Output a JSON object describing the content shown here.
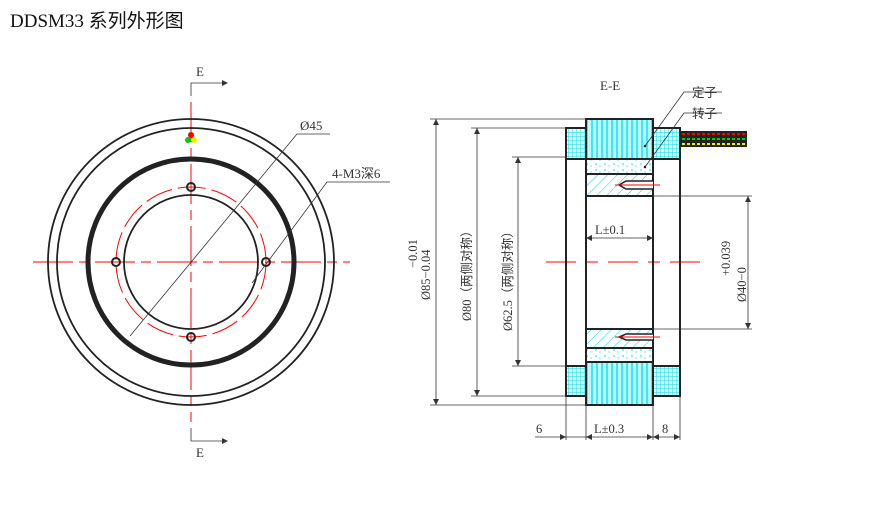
{
  "title": "DDSM33 系列外形图",
  "front_view": {
    "section_mark_top": "E",
    "section_mark_bottom": "E",
    "dia_45": "Ø45",
    "holes_note": "4-M3深6"
  },
  "section_view": {
    "title": "E-E",
    "stator_label": "定子",
    "rotor_label": "转子",
    "dia_85": "Ø85−0.04",
    "dia_85_upper_tol": "−0.01",
    "dia_80": "Ø80（两侧对称）",
    "dia_62_5": "Ø62.5（两侧对称）",
    "dia_40": "Ø40−0",
    "dia_40_upper_tol": "+0.039",
    "length_inner": "L±0.1",
    "length_outer": "L±0.3",
    "width_left": "6",
    "width_right": "8"
  },
  "colors": {
    "centerline": "#ff0000",
    "hatch": "#00e5ee",
    "lines": "#222222",
    "wire_1": "#ff0000",
    "wire_2": "#00cc00",
    "wire_3": "#e6d800"
  }
}
